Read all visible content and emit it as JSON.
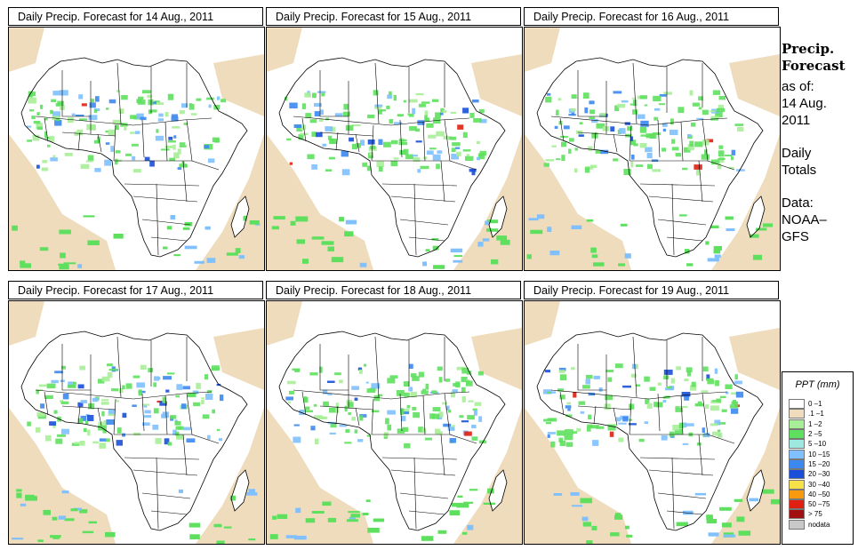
{
  "panels": [
    {
      "title": "Daily Precip. Forecast for  14 Aug., 2011"
    },
    {
      "title": "Daily Precip. Forecast for  15 Aug., 2011"
    },
    {
      "title": "Daily Precip. Forecast for  16 Aug., 2011"
    },
    {
      "title": "Daily Precip. Forecast for  17 Aug., 2011"
    },
    {
      "title": "Daily Precip. Forecast for  18 Aug., 2011"
    },
    {
      "title": "Daily Precip. Forecast for  19 Aug., 2011"
    }
  ],
  "sidebar": {
    "heading1": "Precip.",
    "heading2": "Forecast",
    "asof_label": "as of:",
    "asof_date1": "14 Aug.",
    "asof_date2": "2011",
    "period1": "Daily",
    "period2": "Totals",
    "data_label": "Data:",
    "data_src1": "NOAA–",
    "data_src2": "GFS"
  },
  "legend": {
    "title": "PPT (mm)",
    "items": [
      {
        "label": "0 –1",
        "color": "#ffffff"
      },
      {
        "label": ".1 –1",
        "color": "#eedcbc"
      },
      {
        "label": "1 –2",
        "color": "#a8ee98"
      },
      {
        "label": "2 –5",
        "color": "#5ee05e"
      },
      {
        "label": "5 –10",
        "color": "#9ee8e0"
      },
      {
        "label": "10 –15",
        "color": "#80c0ff"
      },
      {
        "label": "15 –20",
        "color": "#3c88f0"
      },
      {
        "label": "20 –30",
        "color": "#1a50d8"
      },
      {
        "label": "30 –40",
        "color": "#f8e048"
      },
      {
        "label": "40 –50",
        "color": "#f89a10"
      },
      {
        "label": "50 –75",
        "color": "#e02010"
      },
      {
        "label": "> 75",
        "color": "#a01010"
      },
      {
        "label": "nodata",
        "color": "#c8c8c8"
      }
    ]
  }
}
